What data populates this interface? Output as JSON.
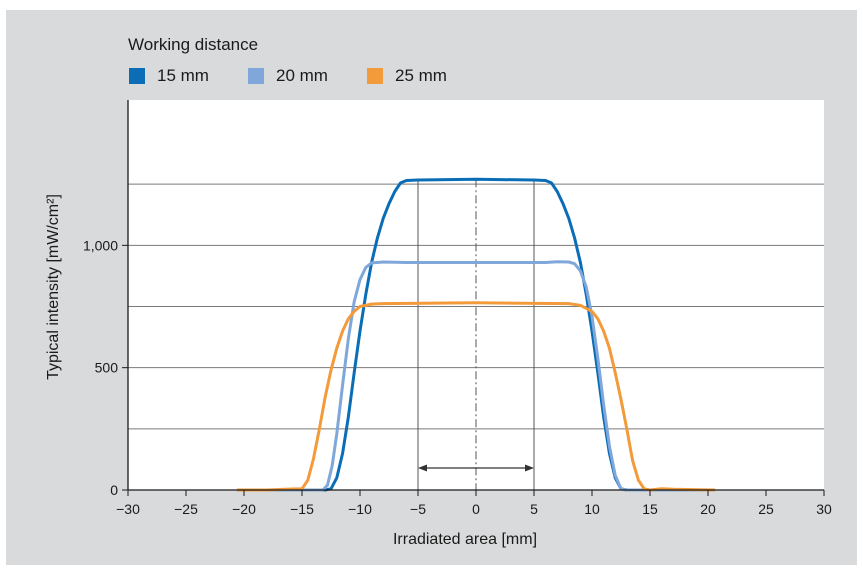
{
  "legend": {
    "title": "Working distance",
    "items": [
      {
        "label": "15 mm",
        "color": "#0a6db5"
      },
      {
        "label": "20 mm",
        "color": "#7fa7da"
      },
      {
        "label": "25 mm",
        "color": "#f39a3a"
      }
    ]
  },
  "chart_data": {
    "type": "line",
    "xlabel": "Irradiated area [mm]",
    "ylabel": "Typical intensity [mW/cm²]",
    "xlim": [
      -30,
      30
    ],
    "ylim": [
      0,
      1500
    ],
    "x_ticks": [
      -30,
      -25,
      -20,
      -15,
      -10,
      -5,
      0,
      5,
      10,
      15,
      20,
      25,
      30
    ],
    "x_tick_labels": [
      "−30",
      "−25",
      "−20",
      "−15",
      "−10",
      "−5",
      "0",
      "5",
      "10",
      "15",
      "20",
      "25",
      "30"
    ],
    "y_ticks": [
      0,
      500,
      1000
    ],
    "y_tick_labels": [
      "0",
      "500",
      "1,000"
    ],
    "y_gridlines": [
      250,
      500,
      750,
      1000,
      1250
    ],
    "grid": true,
    "legend_position": "top-left",
    "annotations": {
      "vertical_lines_x": [
        -5,
        5
      ],
      "center_line_x": 0,
      "arrow": {
        "from": -5,
        "to": 5,
        "y": 90
      }
    },
    "series": [
      {
        "name": "15 mm",
        "color": "#0a6db5",
        "points": [
          [
            -20.5,
            0
          ],
          [
            -15,
            0
          ],
          [
            -13,
            0
          ],
          [
            -12.5,
            5
          ],
          [
            -12,
            50
          ],
          [
            -11.5,
            150
          ],
          [
            -11,
            300
          ],
          [
            -10.5,
            480
          ],
          [
            -10,
            650
          ],
          [
            -9.5,
            800
          ],
          [
            -9,
            930
          ],
          [
            -8.5,
            1030
          ],
          [
            -8,
            1110
          ],
          [
            -7.5,
            1170
          ],
          [
            -7,
            1220
          ],
          [
            -6.5,
            1255
          ],
          [
            -6,
            1265
          ],
          [
            -5,
            1267
          ],
          [
            0,
            1270
          ],
          [
            5,
            1267
          ],
          [
            6,
            1265
          ],
          [
            6.5,
            1255
          ],
          [
            7,
            1220
          ],
          [
            7.5,
            1170
          ],
          [
            8,
            1110
          ],
          [
            8.5,
            1030
          ],
          [
            9,
            930
          ],
          [
            9.5,
            800
          ],
          [
            10,
            650
          ],
          [
            10.5,
            480
          ],
          [
            11,
            300
          ],
          [
            11.5,
            150
          ],
          [
            12,
            50
          ],
          [
            12.5,
            5
          ],
          [
            13,
            0
          ],
          [
            15,
            0
          ],
          [
            20.5,
            0
          ]
        ]
      },
      {
        "name": "20 mm",
        "color": "#7fa7da",
        "points": [
          [
            -20.5,
            0
          ],
          [
            -15,
            0
          ],
          [
            -13.2,
            0
          ],
          [
            -12.8,
            20
          ],
          [
            -12.4,
            100
          ],
          [
            -12,
            230
          ],
          [
            -11.5,
            430
          ],
          [
            -11,
            620
          ],
          [
            -10.5,
            770
          ],
          [
            -10,
            860
          ],
          [
            -9.5,
            910
          ],
          [
            -9,
            928
          ],
          [
            -8,
            932
          ],
          [
            -6,
            930
          ],
          [
            0,
            930
          ],
          [
            6,
            930
          ],
          [
            7,
            933
          ],
          [
            8,
            932
          ],
          [
            8.5,
            925
          ],
          [
            9,
            895
          ],
          [
            9.5,
            830
          ],
          [
            10,
            710
          ],
          [
            10.5,
            540
          ],
          [
            11,
            350
          ],
          [
            11.5,
            180
          ],
          [
            12,
            60
          ],
          [
            12.5,
            5
          ],
          [
            13,
            0
          ],
          [
            15,
            0
          ],
          [
            20.5,
            0
          ]
        ]
      },
      {
        "name": "25 mm",
        "color": "#f39a3a",
        "points": [
          [
            -20.5,
            0
          ],
          [
            -18,
            0
          ],
          [
            -16.5,
            3
          ],
          [
            -15,
            5
          ],
          [
            -14.5,
            40
          ],
          [
            -14,
            130
          ],
          [
            -13.5,
            250
          ],
          [
            -13,
            380
          ],
          [
            -12.5,
            490
          ],
          [
            -12,
            580
          ],
          [
            -11.5,
            650
          ],
          [
            -11,
            700
          ],
          [
            -10.5,
            730
          ],
          [
            -10,
            750
          ],
          [
            -9,
            760
          ],
          [
            -8,
            762
          ],
          [
            0,
            765
          ],
          [
            8,
            762
          ],
          [
            9,
            755
          ],
          [
            10,
            730
          ],
          [
            10.5,
            700
          ],
          [
            11,
            650
          ],
          [
            11.5,
            580
          ],
          [
            12,
            480
          ],
          [
            12.5,
            370
          ],
          [
            13,
            250
          ],
          [
            13.5,
            120
          ],
          [
            14,
            40
          ],
          [
            14.5,
            5
          ],
          [
            15,
            0
          ],
          [
            16,
            5
          ],
          [
            17,
            3
          ],
          [
            20.5,
            0
          ]
        ]
      }
    ]
  }
}
